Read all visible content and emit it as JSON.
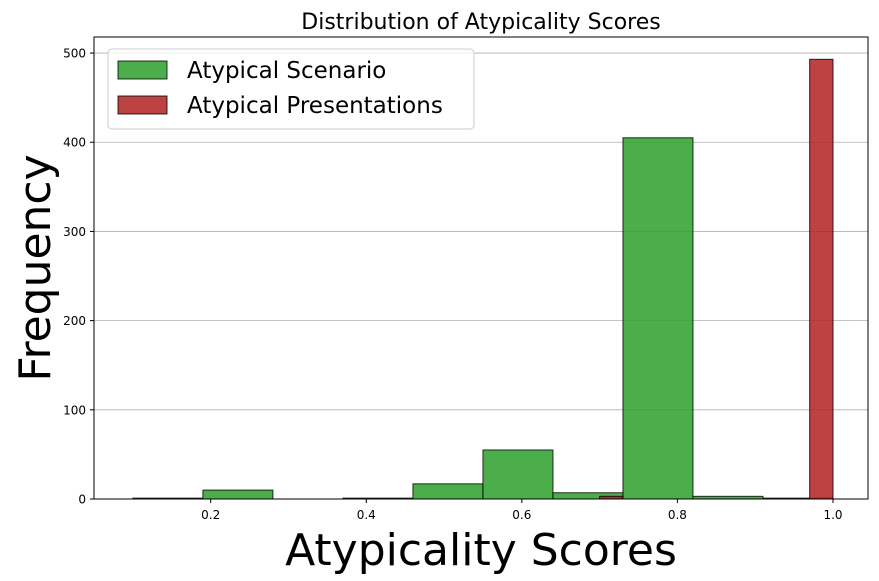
{
  "chart_data": {
    "type": "bar",
    "title": "Distribution of Atypicality Scores",
    "xlabel": "Atypicality Scores",
    "ylabel": "Frequency",
    "xlim": [
      0.05,
      1.045
    ],
    "ylim": [
      0,
      518
    ],
    "xticks": [
      0.2,
      0.4,
      0.6,
      0.8,
      1.0
    ],
    "xtick_labels": [
      "0.2",
      "0.4",
      "0.6",
      "0.8",
      "1.0"
    ],
    "yticks": [
      0,
      100,
      200,
      300,
      400,
      500
    ],
    "ytick_labels": [
      "0",
      "100",
      "200",
      "300",
      "400",
      "500"
    ],
    "grid": "y",
    "legend_position": "top-left",
    "series": [
      {
        "name": "Atypical Scenario",
        "color": "#2ca02c",
        "bins": [
          {
            "x0": 0.1,
            "x1": 0.19,
            "value": 1
          },
          {
            "x0": 0.19,
            "x1": 0.28,
            "value": 10
          },
          {
            "x0": 0.28,
            "x1": 0.37,
            "value": 0
          },
          {
            "x0": 0.37,
            "x1": 0.46,
            "value": 1
          },
          {
            "x0": 0.46,
            "x1": 0.55,
            "value": 17
          },
          {
            "x0": 0.55,
            "x1": 0.64,
            "value": 55
          },
          {
            "x0": 0.64,
            "x1": 0.73,
            "value": 7
          },
          {
            "x0": 0.73,
            "x1": 0.82,
            "value": 405
          },
          {
            "x0": 0.82,
            "x1": 0.91,
            "value": 3
          },
          {
            "x0": 0.91,
            "x1": 1.0,
            "value": 1
          }
        ]
      },
      {
        "name": "Atypical Presentations",
        "color": "#b22222",
        "bins": [
          {
            "x0": 0.7,
            "x1": 0.73,
            "value": 3
          },
          {
            "x0": 0.97,
            "x1": 1.0,
            "value": 493
          }
        ]
      }
    ]
  }
}
